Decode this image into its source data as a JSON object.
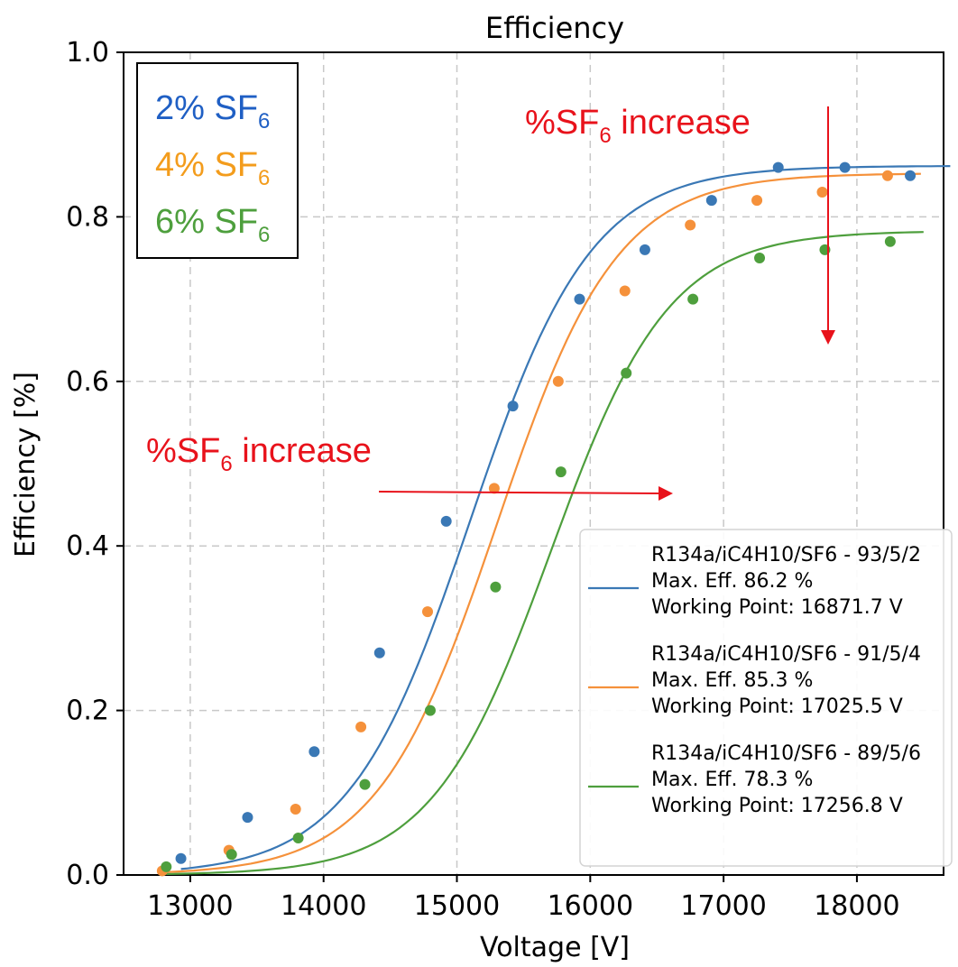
{
  "chart_data": {
    "type": "scatter",
    "title": "Efficiency",
    "xlabel": "Voltage [V]",
    "ylabel": "Efficiency [%]",
    "xlim": [
      12500,
      18650
    ],
    "ylim": [
      0,
      1.0
    ],
    "x_ticks": [
      "13000",
      "14000",
      "15000",
      "16000",
      "17000",
      "18000"
    ],
    "y_ticks": [
      "0.0",
      "0.2",
      "0.4",
      "0.6",
      "0.8",
      "1.0"
    ],
    "grid": true,
    "legend_position": "lower-right",
    "series": [
      {
        "legend_lines": [
          "R134a/iC4H10/SF6 - 93/5/2",
          "Max. Eff. 86.2 %",
          "Working Point: 16871.7 V"
        ],
        "color": "#3a78b5",
        "points": [
          [
            12930,
            0.02
          ],
          [
            13430,
            0.07
          ],
          [
            13930,
            0.15
          ],
          [
            14420,
            0.27
          ],
          [
            14920,
            0.43
          ],
          [
            15420,
            0.57
          ],
          [
            15920,
            0.7
          ],
          [
            16410,
            0.76
          ],
          [
            16910,
            0.82
          ],
          [
            17410,
            0.86
          ],
          [
            17910,
            0.86
          ],
          [
            18400,
            0.85
          ]
        ],
        "fit": {
          "max": 0.862,
          "mid": 15100,
          "scale": 455,
          "x_range": [
            12930,
            18700
          ]
        }
      },
      {
        "legend_lines": [
          "R134a/iC4H10/SF6 - 91/5/4",
          "Max. Eff. 85.3 %",
          "Working Point: 17025.5 V"
        ],
        "color": "#f5913b",
        "points": [
          [
            12790,
            0.005
          ],
          [
            13290,
            0.03
          ],
          [
            13790,
            0.08
          ],
          [
            14280,
            0.18
          ],
          [
            14780,
            0.32
          ],
          [
            15280,
            0.47
          ],
          [
            15760,
            0.6
          ],
          [
            16260,
            0.71
          ],
          [
            16750,
            0.79
          ],
          [
            17250,
            0.82
          ],
          [
            17740,
            0.83
          ],
          [
            18230,
            0.85
          ]
        ],
        "fit": {
          "max": 0.853,
          "mid": 15300,
          "scale": 450,
          "x_range": [
            12790,
            18480
          ]
        }
      },
      {
        "legend_lines": [
          "R134a/iC4H10/SF6 - 89/5/6",
          "Max. Eff. 78.3 %",
          "Working Point: 17256.8 V"
        ],
        "color": "#4e9f3d",
        "points": [
          [
            12820,
            0.01
          ],
          [
            13310,
            0.025
          ],
          [
            13810,
            0.045
          ],
          [
            14310,
            0.11
          ],
          [
            14800,
            0.2
          ],
          [
            15290,
            0.35
          ],
          [
            15780,
            0.49
          ],
          [
            16270,
            0.61
          ],
          [
            16770,
            0.7
          ],
          [
            17270,
            0.75
          ],
          [
            17760,
            0.76
          ],
          [
            18250,
            0.77
          ]
        ],
        "fit": {
          "max": 0.783,
          "mid": 15700,
          "scale": 445,
          "x_range": [
            12820,
            18500
          ]
        }
      }
    ],
    "annotations": {
      "box_items": [
        {
          "prefix": "2% SF",
          "sub": "6",
          "color": "#1f5fc4"
        },
        {
          "prefix": "4% SF",
          "sub": "6",
          "color": "#f39c1c"
        },
        {
          "prefix": "6% SF",
          "sub": "6",
          "color": "#4e9f3d"
        }
      ],
      "arrow_label_prefix": "%SF",
      "arrow_label_sub": "6",
      "arrow_label_suffix": " increase",
      "arrow_color": "#e8121b"
    }
  }
}
